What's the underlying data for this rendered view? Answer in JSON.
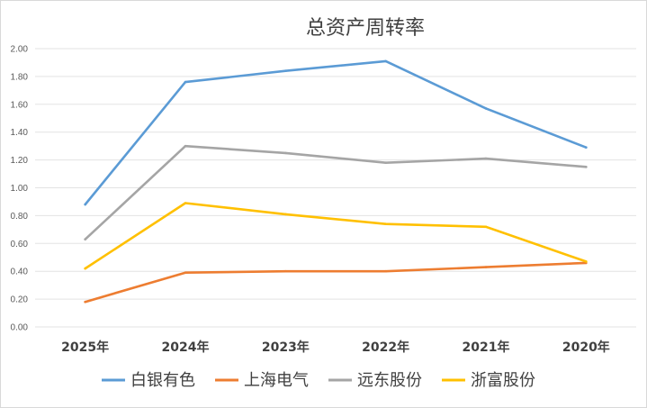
{
  "chart_data": {
    "type": "line",
    "title": "总资产周转率",
    "categories": [
      "2025年",
      "2024年",
      "2023年",
      "2022年",
      "2021年",
      "2020年"
    ],
    "ylim": [
      0,
      2.0
    ],
    "yticks": [
      "0.00",
      "0.20",
      "0.40",
      "0.60",
      "0.80",
      "1.00",
      "1.20",
      "1.40",
      "1.60",
      "1.80",
      "2.00"
    ],
    "grid": true,
    "legend_position": "bottom",
    "series": [
      {
        "name": "白银有色",
        "color": "#5b9bd5",
        "values": [
          0.88,
          1.76,
          1.84,
          1.91,
          1.57,
          1.29
        ]
      },
      {
        "name": "上海电气",
        "color": "#ed7d31",
        "values": [
          0.18,
          0.39,
          0.4,
          0.4,
          0.43,
          0.46
        ]
      },
      {
        "name": "远东股份",
        "color": "#a5a5a5",
        "values": [
          0.63,
          1.3,
          1.25,
          1.18,
          1.21,
          1.15
        ]
      },
      {
        "name": "浙富股份",
        "color": "#ffc000",
        "values": [
          0.42,
          0.89,
          0.81,
          0.74,
          0.72,
          0.47
        ]
      }
    ]
  }
}
